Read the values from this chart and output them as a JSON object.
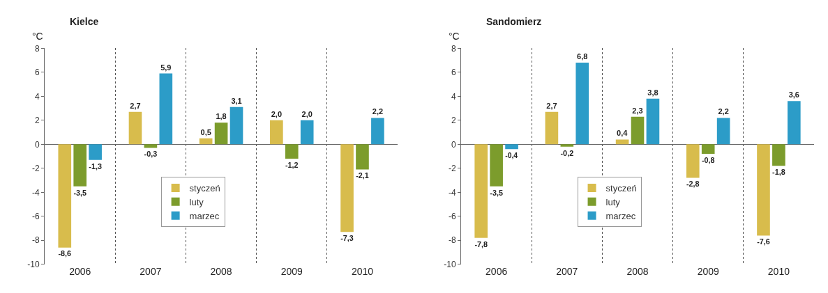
{
  "chart_data": [
    {
      "type": "bar",
      "title": "Kielce",
      "ylabel": "°C",
      "categories": [
        "2006",
        "2007",
        "2008",
        "2009",
        "2010"
      ],
      "ylim": [
        -10,
        8
      ],
      "yticks": [
        -10,
        -8,
        -6,
        -4,
        -2,
        0,
        2,
        4,
        6,
        8
      ],
      "grid": "x",
      "legend": "center",
      "series": [
        {
          "name": "styczeń",
          "color": "#d8bc4c",
          "values": [
            -8.6,
            2.7,
            0.5,
            2.0,
            -7.3
          ],
          "value_labels": [
            "-8,6",
            "2,7",
            "0,5",
            "2,0",
            "-7,3"
          ]
        },
        {
          "name": "luty",
          "color": "#7c9c2c",
          "values": [
            -3.5,
            -0.3,
            1.8,
            -1.2,
            -2.1
          ],
          "value_labels": [
            "-3,5",
            "-0,3",
            "1,8",
            "-1,2",
            "-2,1"
          ]
        },
        {
          "name": "marzec",
          "color": "#2c9cc8",
          "values": [
            -1.3,
            5.9,
            3.1,
            2.0,
            2.2
          ],
          "value_labels": [
            "-1,3",
            "5,9",
            "3,1",
            "2,0",
            "2,2"
          ]
        }
      ]
    },
    {
      "type": "bar",
      "title": "Sandomierz",
      "ylabel": "°C",
      "categories": [
        "2006",
        "2007",
        "2008",
        "2009",
        "2010"
      ],
      "ylim": [
        -10,
        8
      ],
      "yticks": [
        -10,
        -8,
        -6,
        -4,
        -2,
        0,
        2,
        4,
        6,
        8
      ],
      "grid": "x",
      "legend": "center",
      "series": [
        {
          "name": "styczeń",
          "color": "#d8bc4c",
          "values": [
            -7.8,
            2.7,
            0.4,
            -2.8,
            -7.6
          ],
          "value_labels": [
            "-7,8",
            "2,7",
            "0,4",
            "-2,8",
            "-7,6"
          ]
        },
        {
          "name": "luty",
          "color": "#7c9c2c",
          "values": [
            -3.5,
            -0.2,
            2.3,
            -0.8,
            -1.8
          ],
          "value_labels": [
            "-3,5",
            "-0,2",
            "2,3",
            "-0,8",
            "-1,8"
          ]
        },
        {
          "name": "marzec",
          "color": "#2c9cc8",
          "values": [
            -0.4,
            6.8,
            3.8,
            2.2,
            3.6
          ],
          "value_labels": [
            "-0,4",
            "6,8",
            "3,8",
            "2,2",
            "3,6"
          ]
        }
      ]
    }
  ]
}
